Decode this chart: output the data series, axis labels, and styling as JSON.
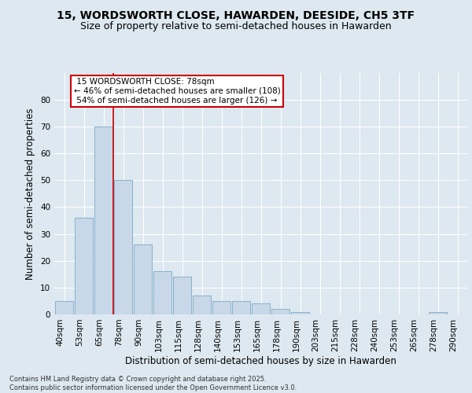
{
  "title1": "15, WORDSWORTH CLOSE, HAWARDEN, DEESIDE, CH5 3TF",
  "title2": "Size of property relative to semi-detached houses in Hawarden",
  "xlabel": "Distribution of semi-detached houses by size in Hawarden",
  "ylabel": "Number of semi-detached properties",
  "categories": [
    "40sqm",
    "53sqm",
    "65sqm",
    "78sqm",
    "90sqm",
    "103sqm",
    "115sqm",
    "128sqm",
    "140sqm",
    "153sqm",
    "165sqm",
    "178sqm",
    "190sqm",
    "203sqm",
    "215sqm",
    "228sqm",
    "240sqm",
    "253sqm",
    "265sqm",
    "278sqm",
    "290sqm"
  ],
  "values": [
    5,
    36,
    70,
    50,
    26,
    16,
    14,
    7,
    5,
    5,
    4,
    2,
    1,
    0,
    0,
    0,
    0,
    0,
    0,
    1,
    0
  ],
  "bar_color": "#c8d8e8",
  "bar_edge_color": "#7aaac8",
  "background_color": "#dde8f0",
  "grid_color": "#ffffff",
  "property_label": "15 WORDSWORTH CLOSE: 78sqm",
  "pct_smaller": 46,
  "n_smaller": 108,
  "pct_larger": 54,
  "n_larger": 126,
  "annotation_box_color": "#ffffff",
  "annotation_box_edge": "#cc0000",
  "redline_index": 3,
  "ylim": [
    0,
    90
  ],
  "yticks": [
    0,
    10,
    20,
    30,
    40,
    50,
    60,
    70,
    80
  ],
  "footnote": "Contains HM Land Registry data © Crown copyright and database right 2025.\nContains public sector information licensed under the Open Government Licence v3.0.",
  "title_fontsize": 10,
  "subtitle_fontsize": 9,
  "axis_label_fontsize": 8.5,
  "tick_fontsize": 7.5,
  "annotation_fontsize": 7.5,
  "footnote_fontsize": 6
}
